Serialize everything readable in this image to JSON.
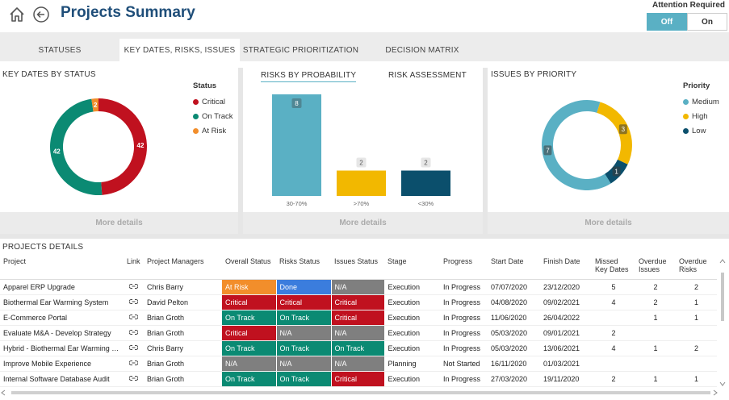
{
  "header": {
    "title": "Projects Summary",
    "attention_label": "Attention Required",
    "toggle_off": "Off",
    "toggle_on": "On"
  },
  "tabs": [
    "STATUSES",
    "KEY DATES, RISKS, ISSUES",
    "STRATEGIC PRIORITIZATION",
    "DECISION MATRIX"
  ],
  "panels": {
    "key_dates": {
      "title": "KEY DATES BY STATUS",
      "legend_title": "Status",
      "more": "More details"
    },
    "risks": {
      "tab_probability": "RISKS BY PROBABILITY",
      "tab_assessment": "RISK ASSESSMENT",
      "more": "More details"
    },
    "issues": {
      "title": "ISSUES BY PRIORITY",
      "legend_title": "Priority",
      "more": "More details"
    }
  },
  "chart_data": [
    {
      "type": "pie",
      "title": "KEY DATES BY STATUS",
      "legend_title": "Status",
      "categories": [
        "Critical",
        "On Track",
        "At Risk"
      ],
      "values": [
        42,
        42,
        2
      ],
      "colors": [
        "#c0111f",
        "#0b8a73",
        "#f28e2b"
      ]
    },
    {
      "type": "bar",
      "title": "RISKS BY PROBABILITY",
      "categories": [
        "30-70%",
        ">70%",
        "<30%"
      ],
      "values": [
        8,
        2,
        2
      ],
      "colors": [
        "#5ab0c4",
        "#f2b800",
        "#0b4f6c"
      ]
    },
    {
      "type": "pie",
      "title": "ISSUES BY PRIORITY",
      "legend_title": "Priority",
      "categories": [
        "Medium",
        "High",
        "Low"
      ],
      "values": [
        7,
        3,
        1
      ],
      "colors": [
        "#5ab0c4",
        "#f2b800",
        "#0b4f6c"
      ]
    }
  ],
  "details": {
    "title": "PROJECTS DETAILS",
    "columns": [
      "Project",
      "Link",
      "Project Managers",
      "Overall Status",
      "Risks  Status",
      "Issues Status",
      "Stage",
      "Progress",
      "Start Date",
      "Finish Date",
      "Missed Key Dates",
      "Overdue Issues",
      "Overdue Risks"
    ],
    "rows": [
      [
        "Apparel ERP Upgrade",
        "",
        "Chris Barry",
        "At Risk",
        "Done",
        "N/A",
        "Execution",
        "In Progress",
        "07/07/2020",
        "23/12/2020",
        "5",
        "2",
        "2"
      ],
      [
        "Biothermal Ear Warming System",
        "",
        "David Pelton",
        "Critical",
        "Critical",
        "Critical",
        "Execution",
        "In Progress",
        "04/08/2020",
        "09/02/2021",
        "4",
        "2",
        "1"
      ],
      [
        "E-Commerce Portal",
        "",
        "Brian Groth",
        "On Track",
        "On Track",
        "Critical",
        "Execution",
        "In Progress",
        "11/06/2020",
        "26/04/2022",
        "",
        "1",
        "1"
      ],
      [
        "Evaluate M&A - Develop Strategy",
        "",
        "Brian Groth",
        "Critical",
        "N/A",
        "N/A",
        "Execution",
        "In Progress",
        "05/03/2020",
        "09/01/2021",
        "2",
        "",
        ""
      ],
      [
        "Hybrid - Biothermal Ear Warming System",
        "",
        "Chris Barry",
        "On Track",
        "On Track",
        "On Track",
        "Execution",
        "In Progress",
        "05/03/2020",
        "13/06/2021",
        "4",
        "1",
        "2"
      ],
      [
        "Improve Mobile Experience",
        "",
        "Brian Groth",
        "N/A",
        "N/A",
        "N/A",
        "Planning",
        "Not Started",
        "16/11/2020",
        "01/03/2021",
        "",
        "",
        ""
      ],
      [
        "Internal Software Database Audit",
        "",
        "Brian Groth",
        "On Track",
        "On Track",
        "Critical",
        "Execution",
        "In Progress",
        "27/03/2020",
        "19/11/2020",
        "2",
        "1",
        "1"
      ]
    ],
    "status_colors": {
      "At Risk": "#f28e2b",
      "Done": "#3b7ddd",
      "N/A": "#7f7f7f",
      "Critical": "#c0111f",
      "On Track": "#0b8a73"
    }
  }
}
